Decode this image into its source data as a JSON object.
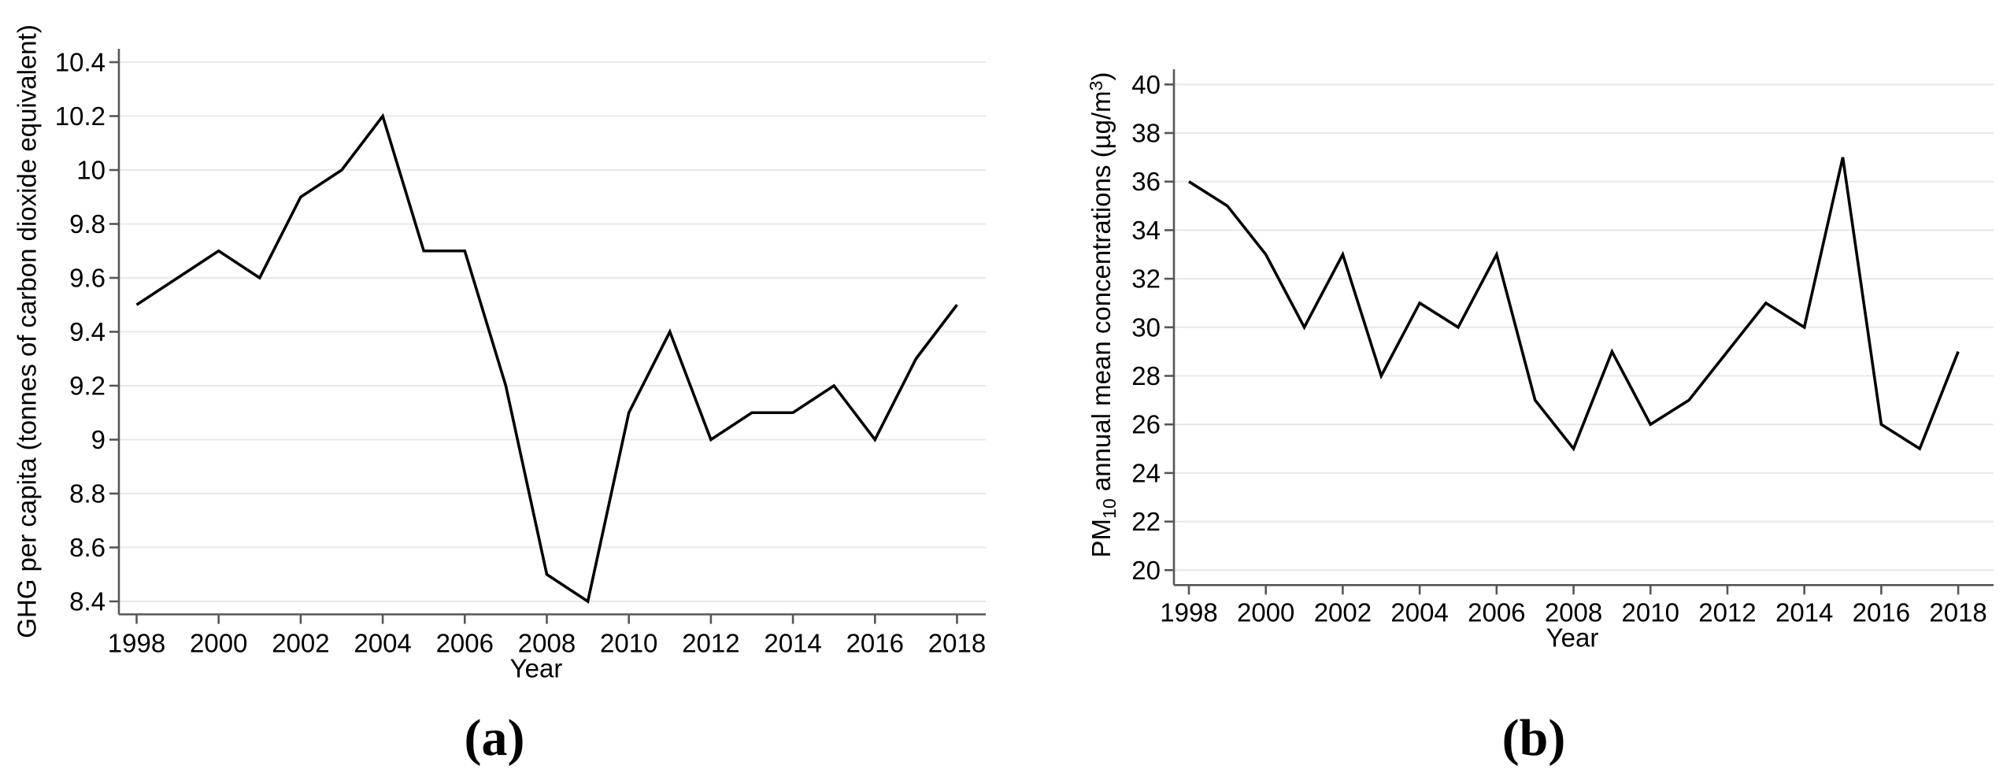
{
  "figure": {
    "background": "#ffffff",
    "captions": {
      "a": "(a)",
      "b": "(b)"
    }
  },
  "colors": {
    "series": "#000000",
    "axis": "#565656",
    "grid": "#e8e8e8",
    "text": "#000000",
    "background": "#ffffff"
  },
  "chart_data": [
    {
      "id": "a",
      "type": "line",
      "caption": "(a)",
      "title": "",
      "xlabel": "Year",
      "ylabel": "GHG per capita (tonnes of carbon dioxide equivalent)",
      "x": [
        1998,
        1999,
        2000,
        2001,
        2002,
        2003,
        2004,
        2005,
        2006,
        2007,
        2008,
        2009,
        2010,
        2011,
        2012,
        2013,
        2014,
        2015,
        2016,
        2017,
        2018
      ],
      "values": [
        9.5,
        9.6,
        9.7,
        9.6,
        9.9,
        10,
        10.2,
        9.7,
        9.7,
        9.2,
        8.5,
        8.4,
        9.1,
        9.4,
        9,
        9.1,
        9.1,
        9.2,
        9,
        9.3,
        9.5
      ],
      "xtick_years": [
        1998,
        2000,
        2002,
        2004,
        2006,
        2008,
        2010,
        2012,
        2014,
        2016,
        2018
      ],
      "ytick_values": [
        8.4,
        8.6,
        8.8,
        9,
        9.2,
        9.4,
        9.6,
        9.8,
        10,
        10.2,
        10.4
      ],
      "ytick_labels": [
        "8.4",
        "8.6",
        "8.8",
        "9",
        "9.2",
        "9.4",
        "9.6",
        "9.8",
        "10",
        "10.2",
        "10.4"
      ],
      "xlim": [
        1998,
        2018
      ],
      "ylim": [
        8.4,
        10.4
      ],
      "grid": true,
      "legend": "none",
      "line_color": "#000000"
    },
    {
      "id": "b",
      "type": "line",
      "caption": "(b)",
      "title": "",
      "xlabel": "Year",
      "ylabel_plain": "PM10 annual mean concentrations (µg/m3)",
      "ylabel_segments": [
        {
          "t": "PM"
        },
        {
          "t": "10",
          "style": "sub"
        },
        {
          "t": " annual mean concentrations (µg/m"
        },
        {
          "t": "3",
          "style": "sup"
        },
        {
          "t": ")"
        }
      ],
      "x": [
        1998,
        1999,
        2000,
        2001,
        2002,
        2003,
        2004,
        2005,
        2006,
        2007,
        2008,
        2009,
        2010,
        2011,
        2012,
        2013,
        2014,
        2015,
        2016,
        2017,
        2018
      ],
      "values": [
        36,
        35,
        33,
        30,
        33,
        28,
        31,
        30,
        33,
        27,
        25,
        29,
        26,
        27,
        29,
        31,
        30,
        37,
        26,
        25,
        29
      ],
      "xtick_years": [
        1998,
        2000,
        2002,
        2004,
        2006,
        2008,
        2010,
        2012,
        2014,
        2016,
        2018
      ],
      "ytick_values": [
        20,
        22,
        24,
        26,
        28,
        30,
        32,
        34,
        36,
        38,
        40
      ],
      "ytick_labels": [
        "20",
        "22",
        "24",
        "26",
        "28",
        "30",
        "32",
        "34",
        "36",
        "38",
        "40"
      ],
      "xlim": [
        1998,
        2018
      ],
      "ylim": [
        20,
        40
      ],
      "grid": true,
      "legend": "none",
      "line_color": "#000000"
    }
  ]
}
